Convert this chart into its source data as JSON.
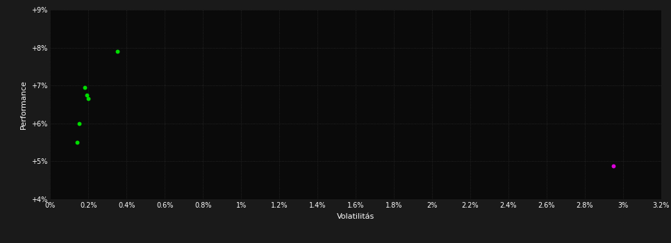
{
  "background_color": "#1a1a1a",
  "plot_bg_color": "#0a0a0a",
  "grid_color": "#2d2d2d",
  "text_color": "#ffffff",
  "xlabel": "Volatilitás",
  "ylabel": "Performance",
  "xlim": [
    0,
    0.032
  ],
  "ylim": [
    0.04,
    0.09
  ],
  "xticks": [
    0.0,
    0.002,
    0.004,
    0.006,
    0.008,
    0.01,
    0.012,
    0.014,
    0.016,
    0.018,
    0.02,
    0.022,
    0.024,
    0.026,
    0.028,
    0.03,
    0.032
  ],
  "yticks": [
    0.04,
    0.05,
    0.06,
    0.07,
    0.08,
    0.09
  ],
  "green_points": [
    [
      0.0035,
      0.079
    ],
    [
      0.0018,
      0.0695
    ],
    [
      0.0019,
      0.0675
    ],
    [
      0.002,
      0.0665
    ],
    [
      0.0015,
      0.06
    ],
    [
      0.0014,
      0.055
    ]
  ],
  "magenta_points": [
    [
      0.0295,
      0.0487
    ]
  ],
  "green_color": "#00dd00",
  "magenta_color": "#dd00dd",
  "point_size": 18
}
